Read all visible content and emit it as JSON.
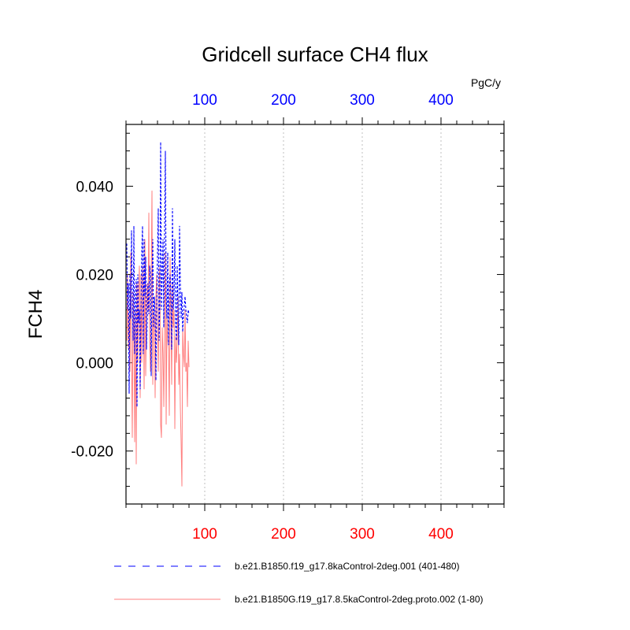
{
  "chart_data": {
    "type": "line",
    "title": "Gridcell surface CH4 flux",
    "ylabel": "FCH4",
    "top_axis_unit": "PgC/y",
    "xlim": [
      0,
      480
    ],
    "ylim": [
      -0.032,
      0.054
    ],
    "yticks": [
      -0.02,
      0.0,
      0.02,
      0.04
    ],
    "ytick_labels": [
      "-0.020",
      "0.000",
      "0.020",
      "0.040"
    ],
    "bottom_xticks": [
      100,
      200,
      300,
      400
    ],
    "bottom_xtick_labels": [
      "100",
      "200",
      "300",
      "400"
    ],
    "top_xticks": [
      100,
      200,
      300,
      400
    ],
    "top_xtick_labels": [
      "100",
      "200",
      "300",
      "400"
    ],
    "top_axis_color": "#0000ff",
    "bottom_axis_color": "#ff0000",
    "grid": "vertical dotted at major x ticks",
    "legend_placement": "below plot",
    "series": [
      {
        "name": "b.e21.B1850.f19_g17.8kaControl-2deg.001 (401-480)",
        "axis": "top",
        "color": "#0000ff",
        "style": "dashed",
        "x": [
          1,
          2,
          3,
          4,
          5,
          6,
          7,
          8,
          9,
          10,
          11,
          12,
          13,
          14,
          15,
          16,
          17,
          18,
          19,
          20,
          21,
          22,
          23,
          24,
          25,
          26,
          27,
          28,
          29,
          30,
          31,
          32,
          33,
          34,
          35,
          36,
          37,
          38,
          39,
          40,
          41,
          42,
          43,
          44,
          45,
          46,
          47,
          48,
          49,
          50,
          51,
          52,
          53,
          54,
          55,
          56,
          57,
          58,
          59,
          60,
          61,
          62,
          63,
          64,
          65,
          66,
          67,
          68,
          69,
          70,
          71,
          72,
          73,
          74,
          75,
          76,
          77,
          78,
          79,
          80
        ],
        "y": [
          0.027,
          0.012,
          0.018,
          -0.007,
          0.02,
          0.01,
          0.03,
          0.015,
          0.005,
          0.031,
          0.002,
          0.015,
          0.019,
          -0.01,
          0.02,
          0.009,
          0.012,
          -0.006,
          0.011,
          0.025,
          0.031,
          0.002,
          0.028,
          0.015,
          0.024,
          0.003,
          0.01,
          0.018,
          0.011,
          0.022,
          0.02,
          -0.003,
          0.018,
          0.028,
          0.008,
          0.015,
          0.011,
          -0.004,
          0.012,
          0.025,
          0.035,
          0.005,
          0.014,
          0.05,
          0.012,
          0.02,
          0.028,
          0.008,
          0.03,
          0.048,
          0.015,
          0.01,
          0.025,
          0.004,
          0.018,
          0.02,
          0.015,
          0.003,
          0.035,
          0.012,
          0.016,
          0.028,
          0.008,
          0.005,
          0.022,
          0.012,
          0.004,
          0.031,
          0.018,
          0.01,
          0.016,
          0.007,
          0.011,
          0.013,
          0.015,
          0.012,
          0.01,
          0.009,
          0.012,
          0.011
        ]
      },
      {
        "name": "b.e21.B1850G.f19_g17.8.5kaControl-2deg.proto.002 (1-80)",
        "axis": "bottom",
        "color": "#ff8080",
        "style": "solid",
        "x": [
          1,
          2,
          3,
          4,
          5,
          6,
          7,
          8,
          9,
          10,
          11,
          12,
          13,
          14,
          15,
          16,
          17,
          18,
          19,
          20,
          21,
          22,
          23,
          24,
          25,
          26,
          27,
          28,
          29,
          30,
          31,
          32,
          33,
          34,
          35,
          36,
          37,
          38,
          39,
          40,
          41,
          42,
          43,
          44,
          45,
          46,
          47,
          48,
          49,
          50,
          51,
          52,
          53,
          54,
          55,
          56,
          57,
          58,
          59,
          60,
          61,
          62,
          63,
          64,
          65,
          66,
          67,
          68,
          69,
          70,
          71,
          72,
          73,
          74,
          75,
          76,
          77,
          78,
          79,
          80
        ],
        "y": [
          0.005,
          0.02,
          0.003,
          0.011,
          -0.002,
          0.025,
          0.003,
          -0.017,
          0.016,
          0.008,
          -0.018,
          0.012,
          -0.023,
          0.018,
          0.0,
          0.015,
          0.022,
          -0.008,
          0.02,
          0.0,
          0.022,
          0.016,
          -0.006,
          0.028,
          -0.003,
          0.01,
          0.018,
          0.012,
          0.034,
          0.005,
          -0.002,
          0.02,
          0.039,
          -0.005,
          0.012,
          0.01,
          -0.008,
          0.015,
          0.02,
          0.008,
          -0.002,
          0.018,
          0.022,
          -0.014,
          -0.017,
          0.008,
          0.002,
          -0.01,
          0.01,
          0.025,
          -0.014,
          0.012,
          0.005,
          0.003,
          -0.012,
          0.024,
          0.01,
          -0.005,
          0.018,
          0.008,
          0.012,
          -0.015,
          0.006,
          0.0,
          0.005,
          0.015,
          -0.005,
          0.002,
          -0.01,
          -0.018,
          -0.028,
          0.008,
          0.002,
          -0.001,
          0.012,
          -0.002,
          0.0,
          -0.01,
          0.005,
          -0.001
        ]
      }
    ]
  }
}
